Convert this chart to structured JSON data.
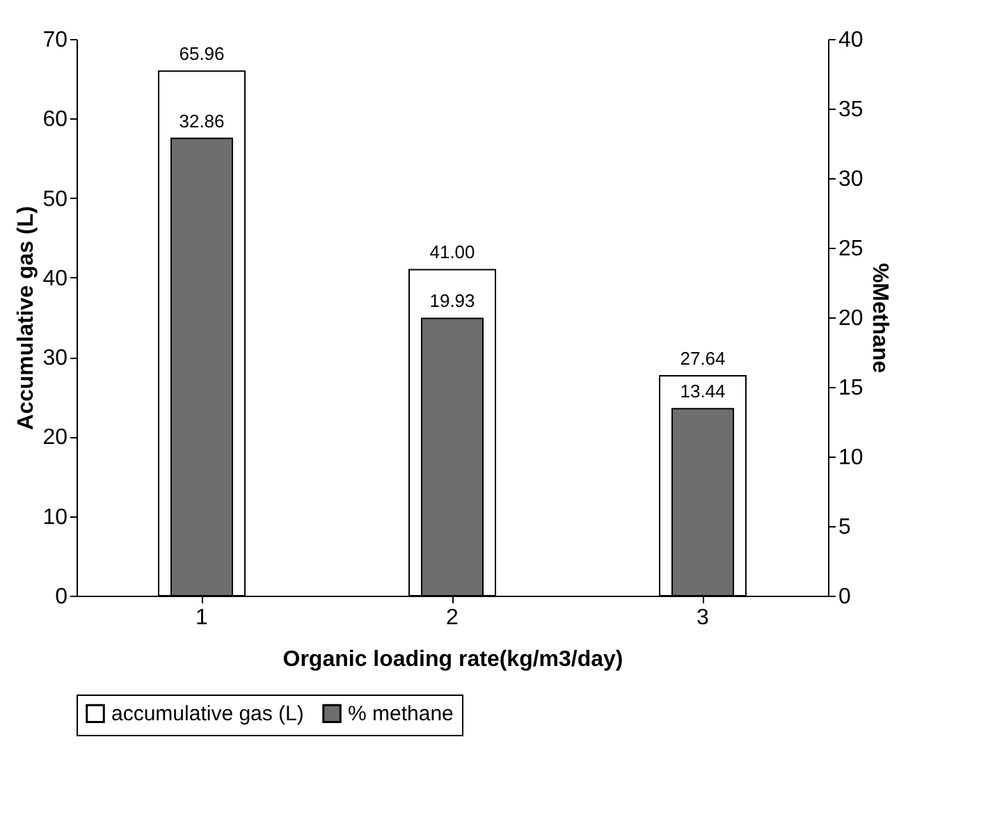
{
  "chart_data": {
    "type": "bar",
    "xlabel": "Organic loading rate(kg/m3/day)",
    "ylabel": "Accumulative gas (L)",
    "y2label": "%Methane",
    "categories": [
      "1",
      "2",
      "3"
    ],
    "series": [
      {
        "name": "accumulative gas (L)",
        "color": "#ffffff",
        "values": [
          65.96,
          41.0,
          27.64
        ],
        "value_labels": [
          "65.96",
          "41.00",
          "27.64"
        ]
      },
      {
        "name": "% methane",
        "color": "#6e6e6e",
        "values": [
          32.86,
          19.93,
          13.44
        ],
        "axis": "y2",
        "value_labels": [
          "32.86",
          "19.93",
          "13.44"
        ]
      }
    ],
    "ylim": [
      0,
      70
    ],
    "yticks": [
      0,
      10,
      20,
      30,
      40,
      50,
      60,
      70
    ],
    "y2lim": [
      0,
      40
    ],
    "y2ticks": [
      0,
      5,
      10,
      15,
      20,
      25,
      30,
      35,
      40
    ],
    "data_labels": true,
    "grid": false,
    "legend": "bottom"
  }
}
